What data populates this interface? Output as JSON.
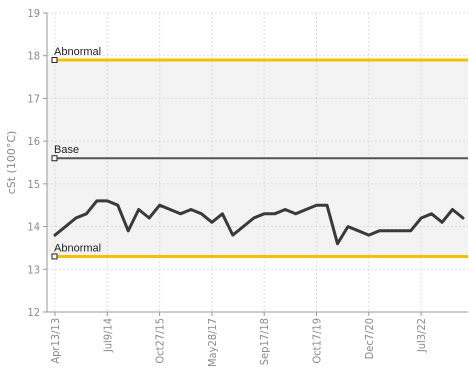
{
  "chart_data": {
    "type": "line",
    "title": "",
    "ylabel": "cSt (100°C)",
    "xlabel": "",
    "ylim": [
      12,
      19
    ],
    "yticks": [
      12,
      13,
      14,
      15,
      16,
      17,
      18,
      19
    ],
    "xtick_labels": [
      "Apr13/13",
      "Jul9/14",
      "Oct27/15",
      "May28/17",
      "Sep17/18",
      "Oct17/19",
      "Dec7/20",
      "Jul3/22"
    ],
    "grid": true,
    "band": {
      "from": 13.3,
      "to": 17.9,
      "color": "#f3f3f3"
    },
    "reference_lines": [
      {
        "label": "Abnormal",
        "value": 17.9,
        "color": "#f2c200",
        "marker": true
      },
      {
        "label": "Base",
        "value": 15.6,
        "color": "#555555",
        "marker": true
      },
      {
        "label": "Abnormal",
        "value": 13.3,
        "color": "#f2c200",
        "marker": true
      }
    ],
    "series": [
      {
        "color": "#3a3a3a",
        "values": [
          13.8,
          14.0,
          14.2,
          14.3,
          14.6,
          14.6,
          14.5,
          13.9,
          14.4,
          14.2,
          14.5,
          14.4,
          14.3,
          14.4,
          14.3,
          14.1,
          14.3,
          13.8,
          14.0,
          14.2,
          14.3,
          14.3,
          14.4,
          14.3,
          14.4,
          14.5,
          14.5,
          13.6,
          14.0,
          13.9,
          13.8,
          13.9,
          13.9,
          13.9,
          13.9,
          14.2,
          14.3,
          14.1,
          14.4,
          14.2
        ]
      }
    ]
  }
}
